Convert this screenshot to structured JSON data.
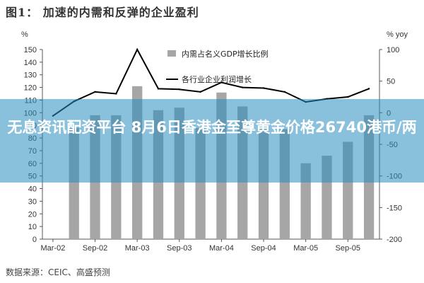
{
  "figure_title": "图1： 加速的内需和反弹的企业盈利",
  "source": "数据来源：CEIC、高盛预测",
  "banner": {
    "text": "无息资讯配资平台 8月6日香港金至尊黄金价格26740港币/两"
  },
  "chart_data": {
    "type": "bar",
    "left_axis_unit": "%",
    "right_axis_unit": "% yoy",
    "left_ylim": [
      0,
      150
    ],
    "left_ticks": [
      0,
      10,
      20,
      30,
      40,
      50,
      60,
      70,
      80,
      90,
      100,
      110,
      120,
      130,
      140,
      150
    ],
    "right_ylim": [
      -200,
      100
    ],
    "right_ticks": [
      -200,
      -150,
      -100,
      -50,
      0,
      50,
      100
    ],
    "x_ticks": [
      "Mar-02",
      "Sep-02",
      "Mar-03",
      "Sep-03",
      "Mar-04",
      "Sep-04",
      "Mar-05",
      "Sep-05"
    ],
    "legend_placement": "top-center",
    "grid": false,
    "colors": {
      "bars": "#a6a6a6",
      "line": "#000000",
      "axis": "#555555"
    },
    "bars": {
      "name": "内需占名义GDP增长比例",
      "axis": "left",
      "x": [
        "Mar-02",
        "Jun-02",
        "Sep-02",
        "Dec-02",
        "Mar-03",
        "Jun-03",
        "Sep-03",
        "Dec-03",
        "Mar-04",
        "Jun-04",
        "Sep-04",
        "Dec-04",
        "Mar-05",
        "Jun-05",
        "Sep-05",
        "Dec-05"
      ],
      "values": [
        null,
        88,
        98,
        98,
        121,
        102,
        104,
        88,
        116,
        105,
        88,
        87,
        60,
        66,
        77,
        98
      ]
    },
    "line": {
      "name": "各行业企业利润增长",
      "axis": "right",
      "x": [
        "Mar-02",
        "Jun-02",
        "Sep-02",
        "Dec-02",
        "Mar-03",
        "Jun-03",
        "Sep-03",
        "Dec-03",
        "Mar-04",
        "Jun-04",
        "Sep-04",
        "Dec-04",
        "Mar-05",
        "Jun-05",
        "Sep-05",
        "Dec-05"
      ],
      "values": [
        -5,
        18,
        33,
        30,
        100,
        38,
        37,
        33,
        48,
        40,
        39,
        33,
        17,
        22,
        25,
        38
      ]
    }
  }
}
